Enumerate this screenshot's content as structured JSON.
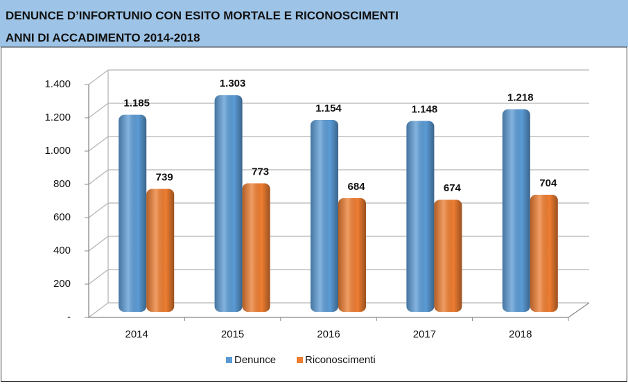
{
  "chart_data": {
    "type": "bar",
    "title": "DENUNCE D’INFORTUNIO CON ESITO MORTALE E RICONOSCIMENTI",
    "subtitle": "ANNI DI ACCADIMENTO 2014-2018",
    "categories": [
      "2014",
      "2015",
      "2016",
      "2017",
      "2018"
    ],
    "series": [
      {
        "name": "Denunce",
        "color": "#5b9bd5",
        "values": [
          1185,
          1303,
          1154,
          1148,
          1218
        ],
        "value_labels": [
          "1.185",
          "1.303",
          "1.154",
          "1.148",
          "1.218"
        ]
      },
      {
        "name": "Riconoscimenti",
        "color": "#ed7d31",
        "values": [
          739,
          773,
          684,
          674,
          704
        ]
      }
    ],
    "ylim": [
      0,
      1400
    ],
    "yticks": [
      {
        "value": 0,
        "label": "-"
      },
      200,
      400,
      600,
      800,
      {
        "value": 1000,
        "label": "1.000"
      },
      {
        "value": 1200,
        "label": "1.200"
      },
      {
        "value": 1400,
        "label": "1.400"
      }
    ],
    "grid": true,
    "legend": "bottom"
  }
}
